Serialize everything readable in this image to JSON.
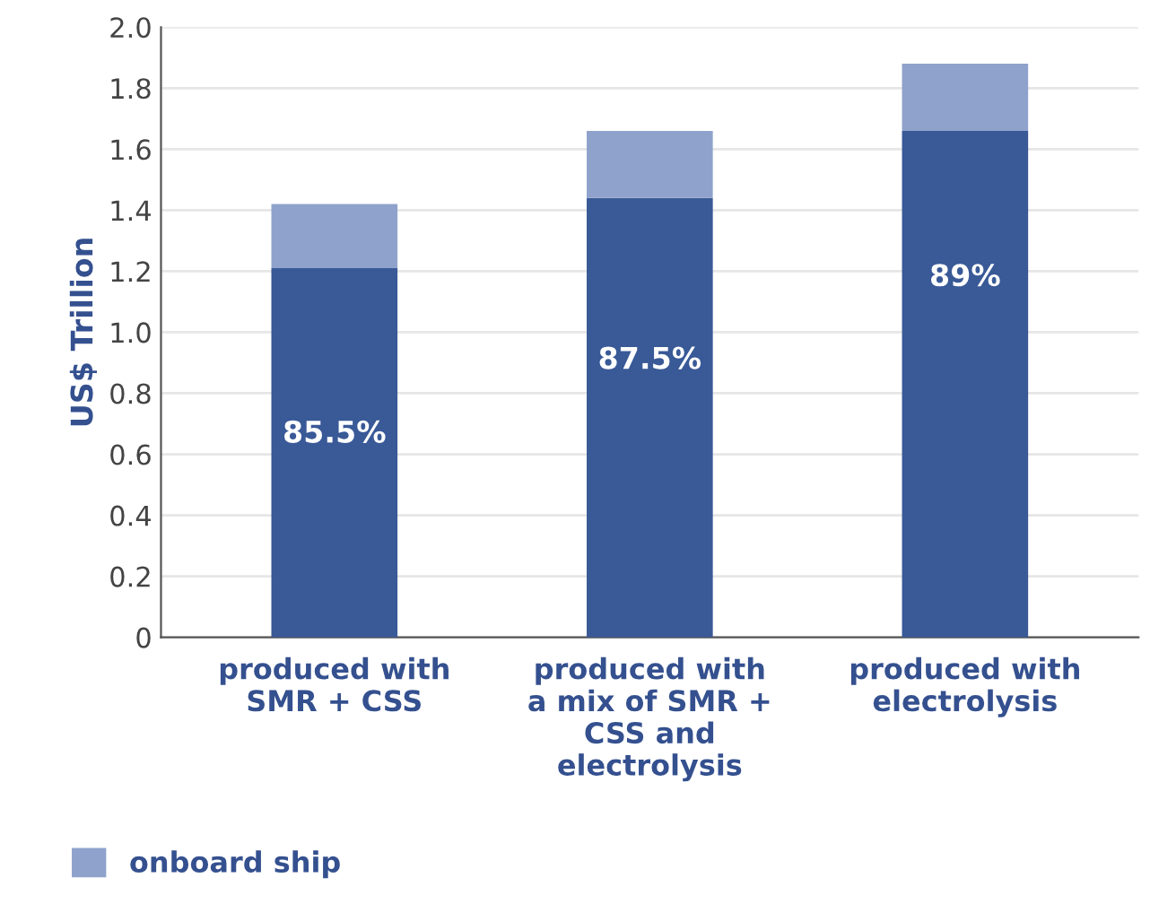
{
  "chart_data": {
    "type": "bar",
    "stacked": true,
    "ylabel": "US$ Trillion",
    "categories": [
      "produced with\nSMR + CSS",
      "produced with\na mix of SMR +\nCSS and\nelectrolysis",
      "produced with\nelectrolysis"
    ],
    "series": [
      {
        "color": "#395997",
        "values": [
          1.21,
          1.44,
          1.66
        ]
      },
      {
        "name": "onboard ship",
        "color": "#8fa2cc",
        "values": [
          0.21,
          0.22,
          0.22
        ]
      }
    ],
    "annotations": [
      "85.5%",
      "87.5%",
      "89%"
    ],
    "ylim": [
      0,
      2.0
    ],
    "yticks": [
      0,
      0.2,
      0.4,
      0.6,
      0.8,
      {
        "value": 1.0,
        "label": "1.0"
      },
      1.2,
      1.4,
      1.6,
      1.8,
      {
        "value": 2.0,
        "label": "2.0"
      }
    ],
    "grid": "y",
    "legend": "bottom left"
  }
}
